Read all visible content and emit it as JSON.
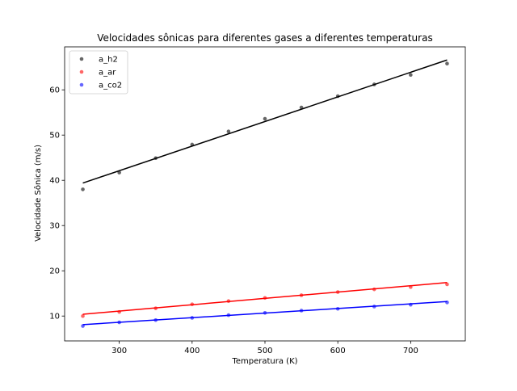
{
  "chart_data": {
    "type": "scatter",
    "title": "Velocidades sônicas para diferentes gases a diferentes temperaturas",
    "xlabel": "Temperatura (K)",
    "ylabel": "Velocidade Sônica (m/s)",
    "xlim": [
      225,
      775
    ],
    "ylim": [
      4.5,
      69.5
    ],
    "xticks": [
      300,
      400,
      500,
      600,
      700
    ],
    "yticks": [
      10,
      20,
      30,
      40,
      50,
      60
    ],
    "x": [
      250,
      300,
      350,
      400,
      450,
      500,
      550,
      600,
      650,
      700,
      750
    ],
    "series": [
      {
        "name": "a_h2",
        "color": "#000000",
        "points": [
          38.0,
          41.7,
          44.9,
          47.9,
          50.8,
          53.6,
          56.1,
          58.6,
          61.2,
          63.3,
          65.8
        ],
        "fit": [
          39.4,
          66.6
        ]
      },
      {
        "name": "a_ar",
        "color": "#ff0000",
        "points": [
          10.0,
          10.9,
          11.7,
          12.6,
          13.3,
          14.0,
          14.6,
          15.3,
          15.9,
          16.4,
          17.0
        ],
        "fit": [
          10.4,
          17.4
        ]
      },
      {
        "name": "a_co2",
        "color": "#0000ff",
        "points": [
          7.8,
          8.6,
          9.1,
          9.6,
          10.2,
          10.7,
          11.2,
          11.6,
          12.1,
          12.5,
          13.0
        ],
        "fit": [
          8.1,
          13.2
        ]
      }
    ],
    "legend_position": "top-left",
    "grid": false
  }
}
